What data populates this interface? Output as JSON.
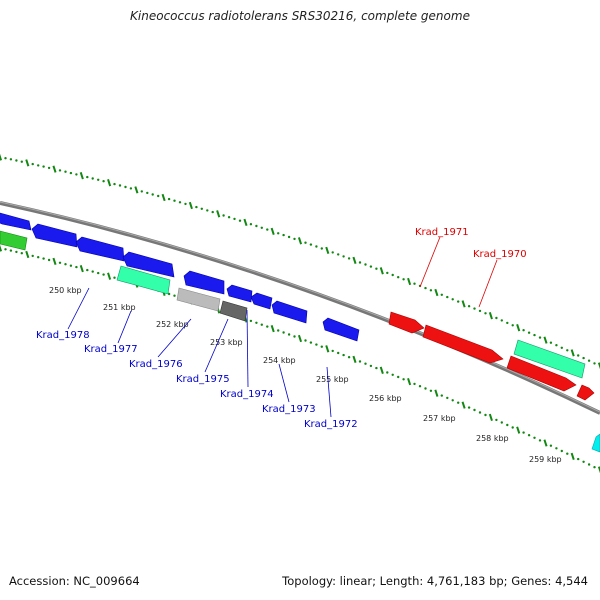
{
  "title": "Kineococcus radiotolerans SRS30216, complete genome",
  "footer": {
    "accession": "Accession: NC_009664",
    "summary": "Topology: linear; Length: 4,761,183 bp; Genes: 4,544"
  },
  "colors": {
    "forward_gene": "#ff0000",
    "reverse_gene": "#0000ff",
    "rna_gene": "#33ffaa",
    "backbone": "#888888",
    "scale_ticks": "#118811"
  },
  "ticks": [
    "250 kbp",
    "251 kbp",
    "252 kbp",
    "253 kbp",
    "254 kbp",
    "255 kbp",
    "256 kbp",
    "257 kbp",
    "258 kbp",
    "259 kbp"
  ],
  "labels": [
    {
      "text": "Krad_1978",
      "strand": "reverse"
    },
    {
      "text": "Krad_1977",
      "strand": "reverse"
    },
    {
      "text": "Krad_1976",
      "strand": "reverse"
    },
    {
      "text": "Krad_1975",
      "strand": "reverse"
    },
    {
      "text": "Krad_1974",
      "strand": "reverse"
    },
    {
      "text": "Krad_1973",
      "strand": "reverse"
    },
    {
      "text": "Krad_1972",
      "strand": "reverse"
    },
    {
      "text": "Krad_1971",
      "strand": "forward"
    },
    {
      "text": "Krad_1970",
      "strand": "forward"
    }
  ]
}
